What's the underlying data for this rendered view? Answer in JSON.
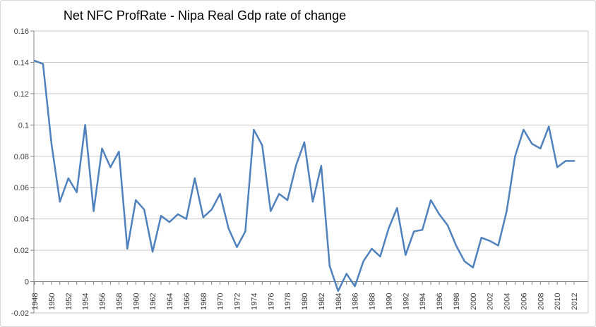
{
  "chart_data": {
    "type": "line",
    "title": "Net NFC ProfRate - Nipa Real Gdp rate of change",
    "series_name": "Net NFC ProfRate - Nipa Real Gdp rate of change",
    "x": [
      1948,
      1949,
      1950,
      1951,
      1952,
      1953,
      1954,
      1955,
      1956,
      1957,
      1958,
      1959,
      1960,
      1961,
      1962,
      1963,
      1964,
      1965,
      1966,
      1967,
      1968,
      1969,
      1970,
      1971,
      1972,
      1973,
      1974,
      1975,
      1976,
      1977,
      1978,
      1979,
      1980,
      1981,
      1982,
      1983,
      1984,
      1985,
      1986,
      1987,
      1988,
      1989,
      1990,
      1991,
      1992,
      1993,
      1994,
      1995,
      1996,
      1997,
      1998,
      1999,
      2000,
      2001,
      2002,
      2003,
      2004,
      2005,
      2006,
      2007,
      2008,
      2009,
      2010,
      2011,
      2012
    ],
    "values": [
      0.141,
      0.139,
      0.088,
      0.051,
      0.066,
      0.057,
      0.1,
      0.045,
      0.085,
      0.073,
      0.083,
      0.021,
      0.052,
      0.046,
      0.019,
      0.042,
      0.038,
      0.043,
      0.04,
      0.066,
      0.041,
      0.046,
      0.056,
      0.034,
      0.022,
      0.032,
      0.097,
      0.087,
      0.045,
      0.056,
      0.052,
      0.074,
      0.089,
      0.051,
      0.074,
      0.01,
      -0.006,
      0.005,
      -0.003,
      0.013,
      0.021,
      0.016,
      0.034,
      0.047,
      0.017,
      0.032,
      0.033,
      0.052,
      0.043,
      0.036,
      0.023,
      0.013,
      0.009,
      0.028,
      0.026,
      0.023,
      0.045,
      0.08,
      0.097,
      0.088,
      0.085,
      0.099,
      0.073,
      0.077,
      0.077
    ],
    "ylim": [
      -0.02,
      0.16
    ],
    "ytick_labels": [
      "0.16",
      "0.14",
      "0.12",
      "0.1",
      "0.08",
      "0.06",
      "0.04",
      "0.02",
      "0",
      "-0.02"
    ],
    "xtick_labels": [
      "1948",
      "1950",
      "1952",
      "1954",
      "1956",
      "1958",
      "1960",
      "1962",
      "1964",
      "1966",
      "1968",
      "1970",
      "1972",
      "1974",
      "1976",
      "1978",
      "1980",
      "1982",
      "1984",
      "1986",
      "1988",
      "1990",
      "1992",
      "1994",
      "1996",
      "1998",
      "2000",
      "2002",
      "2004",
      "2006",
      "2008",
      "2010",
      "2012"
    ],
    "grid": "horizontal",
    "legend": "none",
    "xlabel": "",
    "ylabel": "",
    "line_color": "#4F81BD",
    "grid_color": "#C9C9C9",
    "axis_color": "#848484",
    "label_color": "#3F3F3F",
    "title_color": "#000000",
    "background": "#FFFFFF",
    "frame_border_color": "#D7D7D7"
  }
}
